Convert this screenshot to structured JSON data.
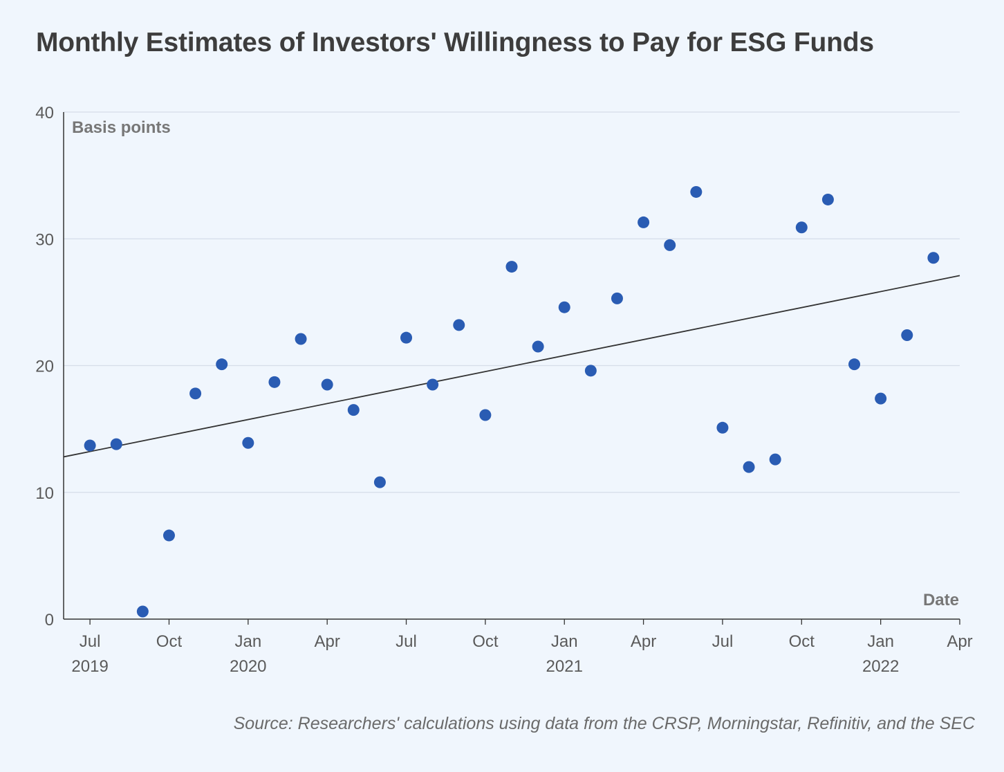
{
  "title": "Monthly Estimates of Investors' Willingness to Pay for ESG Funds",
  "source": "Source: Researchers' calculations using data from the CRSP, Morningstar, Refinitiv, and the SEC",
  "colors": {
    "background": "#f0f6fd",
    "points": "#2a5cb3",
    "trend": "#333333",
    "grid": "#d5dde8",
    "axis": "#333333"
  },
  "chart_data": {
    "type": "scatter",
    "title": "Monthly Estimates of Investors' Willingness to Pay for ESG Funds",
    "ylabel": "Basis points",
    "xlabel": "Date",
    "ylim": [
      0,
      40
    ],
    "y_ticks": [
      0,
      10,
      20,
      30,
      40
    ],
    "xlim": [
      "2019-06",
      "2022-04"
    ],
    "grid": "horizontal",
    "x_ticks": [
      {
        "date": "2019-07",
        "label": "Jul",
        "year": "2019"
      },
      {
        "date": "2019-10",
        "label": "Oct",
        "year": ""
      },
      {
        "date": "2020-01",
        "label": "Jan",
        "year": "2020"
      },
      {
        "date": "2020-04",
        "label": "Apr",
        "year": ""
      },
      {
        "date": "2020-07",
        "label": "Jul",
        "year": ""
      },
      {
        "date": "2020-10",
        "label": "Oct",
        "year": ""
      },
      {
        "date": "2021-01",
        "label": "Jan",
        "year": "2021"
      },
      {
        "date": "2021-04",
        "label": "Apr",
        "year": ""
      },
      {
        "date": "2021-07",
        "label": "Jul",
        "year": ""
      },
      {
        "date": "2021-10",
        "label": "Oct",
        "year": ""
      },
      {
        "date": "2022-01",
        "label": "Jan",
        "year": "2022"
      },
      {
        "date": "2022-04",
        "label": "Apr",
        "year": ""
      }
    ],
    "points": [
      {
        "x": "2019-07",
        "y": 13.7
      },
      {
        "x": "2019-08",
        "y": 13.8
      },
      {
        "x": "2019-09",
        "y": 0.6
      },
      {
        "x": "2019-10",
        "y": 6.6
      },
      {
        "x": "2019-11",
        "y": 17.8
      },
      {
        "x": "2019-12",
        "y": 20.1
      },
      {
        "x": "2020-01",
        "y": 13.9
      },
      {
        "x": "2020-02",
        "y": 18.7
      },
      {
        "x": "2020-03",
        "y": 22.1
      },
      {
        "x": "2020-04",
        "y": 18.5
      },
      {
        "x": "2020-05",
        "y": 16.5
      },
      {
        "x": "2020-06",
        "y": 10.8
      },
      {
        "x": "2020-07",
        "y": 22.2
      },
      {
        "x": "2020-08",
        "y": 18.5
      },
      {
        "x": "2020-09",
        "y": 23.2
      },
      {
        "x": "2020-10",
        "y": 16.1
      },
      {
        "x": "2020-11",
        "y": 27.8
      },
      {
        "x": "2020-12",
        "y": 21.5
      },
      {
        "x": "2021-01",
        "y": 24.6
      },
      {
        "x": "2021-02",
        "y": 19.6
      },
      {
        "x": "2021-03",
        "y": 25.3
      },
      {
        "x": "2021-04",
        "y": 31.3
      },
      {
        "x": "2021-05",
        "y": 29.5
      },
      {
        "x": "2021-06",
        "y": 33.7
      },
      {
        "x": "2021-07",
        "y": 15.1
      },
      {
        "x": "2021-08",
        "y": 12.0
      },
      {
        "x": "2021-09",
        "y": 12.6
      },
      {
        "x": "2021-10",
        "y": 30.9
      },
      {
        "x": "2021-11",
        "y": 33.1
      },
      {
        "x": "2021-12",
        "y": 20.1
      },
      {
        "x": "2022-01",
        "y": 17.4
      },
      {
        "x": "2022-02",
        "y": 22.4
      },
      {
        "x": "2022-03",
        "y": 28.5
      }
    ],
    "trendline": {
      "start": {
        "x": "2019-06",
        "y": 12.8
      },
      "end": {
        "x": "2022-04",
        "y": 27.1
      }
    }
  }
}
